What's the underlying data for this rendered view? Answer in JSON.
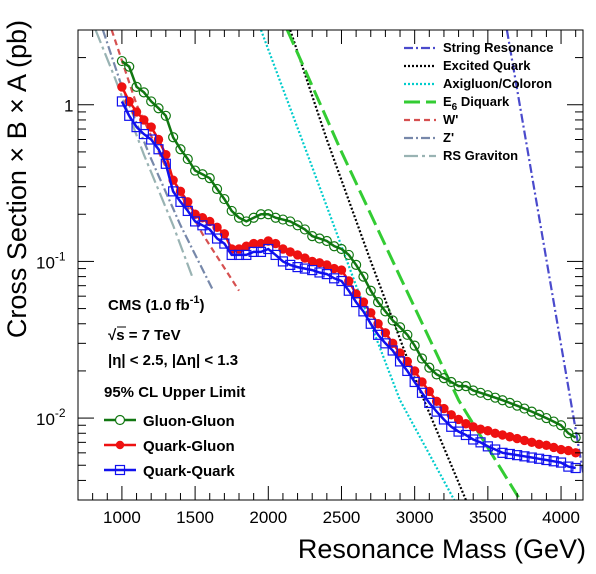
{
  "chart_data": {
    "type": "line",
    "title": "",
    "xlabel": "Resonance Mass (GeV)",
    "ylabel": "Cross Section × B × A (pb)",
    "xlim": [
      700,
      4150
    ],
    "ylim": [
      0.003,
      3.0
    ],
    "yscale": "log",
    "x_ticks": [
      1000,
      1500,
      2000,
      2500,
      3000,
      3500,
      4000
    ],
    "y_ticks": [
      {
        "value": 1,
        "label": "1"
      },
      {
        "value": 0.1,
        "label": "10",
        "exp": "-1"
      },
      {
        "value": 0.01,
        "label": "10",
        "exp": "-2"
      }
    ],
    "legend_position": "top-right",
    "theory": [
      {
        "name": "String Resonance",
        "color": "#4a4acc",
        "style": "dashdot",
        "points": [
          [
            3630,
            3.0
          ],
          [
            4150,
            0.0045
          ]
        ]
      },
      {
        "name": "Excited Quark",
        "color": "#000000",
        "style": "dotted",
        "points": [
          [
            2150,
            3.0
          ],
          [
            2400,
            0.6
          ],
          [
            2700,
            0.1
          ],
          [
            3000,
            0.018
          ],
          [
            3350,
            0.003
          ]
        ]
      },
      {
        "name": "Axigluon/Coloron",
        "color": "#00cccc",
        "style": "dotted",
        "points": [
          [
            1950,
            3.0
          ],
          [
            2300,
            0.4
          ],
          [
            2600,
            0.07
          ],
          [
            2900,
            0.013
          ],
          [
            3270,
            0.003
          ]
        ]
      },
      {
        "name": "E6 Diquark",
        "color": "#33cc33",
        "style": "longdash",
        "points": [
          [
            2130,
            3.0
          ],
          [
            2500,
            0.5
          ],
          [
            2900,
            0.08
          ],
          [
            3300,
            0.013
          ],
          [
            3720,
            0.003
          ]
        ]
      },
      {
        "name": "W'",
        "color": "#d65050",
        "style": "dashed",
        "points": [
          [
            930,
            3.0
          ],
          [
            1100,
            1.0
          ],
          [
            1300,
            0.4
          ],
          [
            1550,
            0.15
          ],
          [
            1800,
            0.065
          ]
        ]
      },
      {
        "name": "Z'",
        "color": "#7788aa",
        "style": "dashdot",
        "points": [
          [
            870,
            3.0
          ],
          [
            1000,
            1.3
          ],
          [
            1200,
            0.45
          ],
          [
            1400,
            0.17
          ],
          [
            1620,
            0.066
          ]
        ]
      },
      {
        "name": "RS Graviton",
        "color": "#99b3b3",
        "style": "longdashdot",
        "points": [
          [
            820,
            3.0
          ],
          [
            950,
            1.5
          ],
          [
            1150,
            0.48
          ],
          [
            1350,
            0.17
          ],
          [
            1480,
            0.08
          ]
        ]
      }
    ],
    "series": [
      {
        "name": "Gluon-Gluon",
        "color": "#117711",
        "marker": "open-circle",
        "x": [
          1000,
          1050,
          1100,
          1150,
          1200,
          1250,
          1300,
          1350,
          1400,
          1450,
          1500,
          1550,
          1600,
          1650,
          1700,
          1750,
          1800,
          1850,
          1900,
          1950,
          2000,
          2050,
          2100,
          2150,
          2200,
          2250,
          2300,
          2350,
          2400,
          2450,
          2500,
          2550,
          2600,
          2650,
          2700,
          2750,
          2800,
          2850,
          2900,
          2950,
          3000,
          3050,
          3100,
          3150,
          3200,
          3250,
          3300,
          3350,
          3400,
          3450,
          3500,
          3550,
          3600,
          3650,
          3700,
          3750,
          3800,
          3850,
          3900,
          3950,
          4000,
          4050,
          4100
        ],
        "y": [
          1.9,
          1.75,
          1.3,
          1.2,
          1.05,
          0.95,
          0.85,
          0.62,
          0.52,
          0.45,
          0.38,
          0.36,
          0.34,
          0.29,
          0.25,
          0.21,
          0.19,
          0.18,
          0.19,
          0.2,
          0.2,
          0.19,
          0.185,
          0.18,
          0.17,
          0.16,
          0.145,
          0.14,
          0.135,
          0.125,
          0.12,
          0.11,
          0.095,
          0.08,
          0.065,
          0.055,
          0.048,
          0.042,
          0.038,
          0.034,
          0.029,
          0.024,
          0.021,
          0.019,
          0.018,
          0.017,
          0.016,
          0.016,
          0.015,
          0.0145,
          0.014,
          0.0135,
          0.013,
          0.0125,
          0.012,
          0.0115,
          0.011,
          0.0105,
          0.01,
          0.0095,
          0.009,
          0.008,
          0.0075
        ]
      },
      {
        "name": "Quark-Gluon",
        "color": "#ee1111",
        "marker": "filled-circle",
        "x": [
          1000,
          1050,
          1100,
          1150,
          1200,
          1250,
          1300,
          1350,
          1400,
          1450,
          1500,
          1550,
          1600,
          1650,
          1700,
          1750,
          1800,
          1850,
          1900,
          1950,
          2000,
          2050,
          2100,
          2150,
          2200,
          2250,
          2300,
          2350,
          2400,
          2450,
          2500,
          2550,
          2600,
          2650,
          2700,
          2750,
          2800,
          2850,
          2900,
          2950,
          3000,
          3050,
          3100,
          3150,
          3200,
          3250,
          3300,
          3350,
          3400,
          3450,
          3500,
          3550,
          3600,
          3650,
          3700,
          3750,
          3800,
          3850,
          3900,
          3950,
          4000,
          4050,
          4100
        ],
        "y": [
          1.3,
          1.05,
          0.9,
          0.8,
          0.72,
          0.6,
          0.48,
          0.33,
          0.28,
          0.24,
          0.2,
          0.19,
          0.18,
          0.165,
          0.15,
          0.12,
          0.12,
          0.125,
          0.13,
          0.13,
          0.135,
          0.13,
          0.12,
          0.115,
          0.11,
          0.105,
          0.1,
          0.098,
          0.095,
          0.09,
          0.088,
          0.075,
          0.062,
          0.055,
          0.047,
          0.04,
          0.035,
          0.03,
          0.026,
          0.023,
          0.02,
          0.017,
          0.0148,
          0.0128,
          0.0115,
          0.0105,
          0.0098,
          0.0092,
          0.0088,
          0.0085,
          0.0083,
          0.008,
          0.0078,
          0.0076,
          0.0074,
          0.0072,
          0.007,
          0.0068,
          0.0067,
          0.0065,
          0.0063,
          0.0062,
          0.006
        ]
      },
      {
        "name": "Quark-Quark",
        "color": "#1111ee",
        "marker": "open-square",
        "x": [
          1000,
          1050,
          1100,
          1150,
          1200,
          1250,
          1300,
          1350,
          1400,
          1450,
          1500,
          1550,
          1600,
          1650,
          1700,
          1750,
          1800,
          1850,
          1900,
          1950,
          2000,
          2050,
          2100,
          2150,
          2200,
          2250,
          2300,
          2350,
          2400,
          2450,
          2500,
          2550,
          2600,
          2650,
          2700,
          2750,
          2800,
          2850,
          2900,
          2950,
          3000,
          3050,
          3100,
          3150,
          3200,
          3250,
          3300,
          3350,
          3400,
          3450,
          3500,
          3550,
          3600,
          3650,
          3700,
          3750,
          3800,
          3850,
          3900,
          3950,
          4000,
          4050,
          4100
        ],
        "y": [
          1.05,
          0.85,
          0.72,
          0.65,
          0.6,
          0.52,
          0.42,
          0.28,
          0.24,
          0.21,
          0.18,
          0.17,
          0.16,
          0.14,
          0.13,
          0.11,
          0.11,
          0.11,
          0.115,
          0.115,
          0.12,
          0.11,
          0.1,
          0.095,
          0.092,
          0.09,
          0.088,
          0.085,
          0.083,
          0.078,
          0.075,
          0.065,
          0.055,
          0.048,
          0.04,
          0.034,
          0.03,
          0.027,
          0.023,
          0.02,
          0.017,
          0.0145,
          0.0125,
          0.011,
          0.0098,
          0.0088,
          0.0082,
          0.0078,
          0.0073,
          0.007,
          0.0066,
          0.0063,
          0.006,
          0.0059,
          0.0058,
          0.0057,
          0.0056,
          0.0055,
          0.0054,
          0.0053,
          0.0052,
          0.0049,
          0.0048
        ]
      }
    ],
    "annotations": {
      "experiment": "CMS (1.0 fb",
      "experiment_sup": "-1",
      "experiment_close": ")",
      "energy_sqrt": "√",
      "energy": "s = 7 TeV",
      "cuts": "|η| < 2.5, |Δη| < 1.3",
      "cl": "95% CL Upper Limit"
    }
  }
}
